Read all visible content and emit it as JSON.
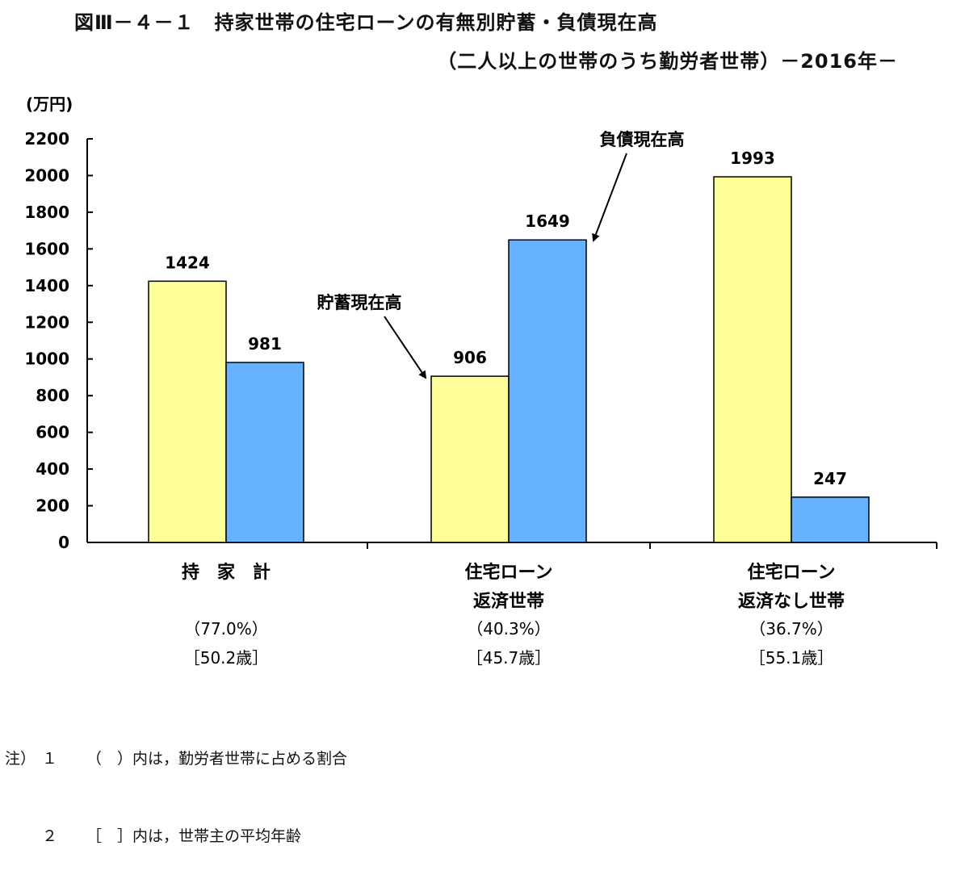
{
  "title": "図Ⅲ－４－１　持家世帯の住宅ローンの有無別貯蓄・負債現在高",
  "subtitle": "（二人以上の世帯のうち勤労者世帯）－2016年－",
  "colors": {
    "savings": "#FFFF99",
    "debt": "#66B2FF",
    "axis": "#000000"
  },
  "chart_data": {
    "type": "bar",
    "unit_label": "(万円)",
    "ylim": [
      0,
      2200
    ],
    "yticks": [
      0,
      200,
      400,
      600,
      800,
      1000,
      1200,
      1400,
      1600,
      1800,
      2000,
      2200
    ],
    "grid": false,
    "categories": [
      {
        "label_lines": [
          "持　家　計"
        ],
        "percent": "（77.0%）",
        "age": "［50.2歳］"
      },
      {
        "label_lines": [
          "住宅ローン",
          "返済世帯"
        ],
        "percent": "（40.3%）",
        "age": "［45.7歳］"
      },
      {
        "label_lines": [
          "住宅ローン",
          "返済なし世帯"
        ],
        "percent": "（36.7%）",
        "age": "［55.1歳］"
      }
    ],
    "series": [
      {
        "name": "貯蓄現在高",
        "values": [
          1424,
          906,
          1993
        ]
      },
      {
        "name": "負債現在高",
        "values": [
          981,
          1649,
          247
        ]
      }
    ],
    "data_labels": [
      "1424",
      "981",
      "906",
      "1649",
      "1993",
      "247"
    ]
  },
  "notes": {
    "note1": {
      "lead": "注）",
      "num": "１",
      "text": "（　）内は，勤労者世帯に占める割合"
    },
    "note2": {
      "lead": "",
      "num": "２",
      "text": "［　］内は，世帯主の平均年齢"
    }
  }
}
